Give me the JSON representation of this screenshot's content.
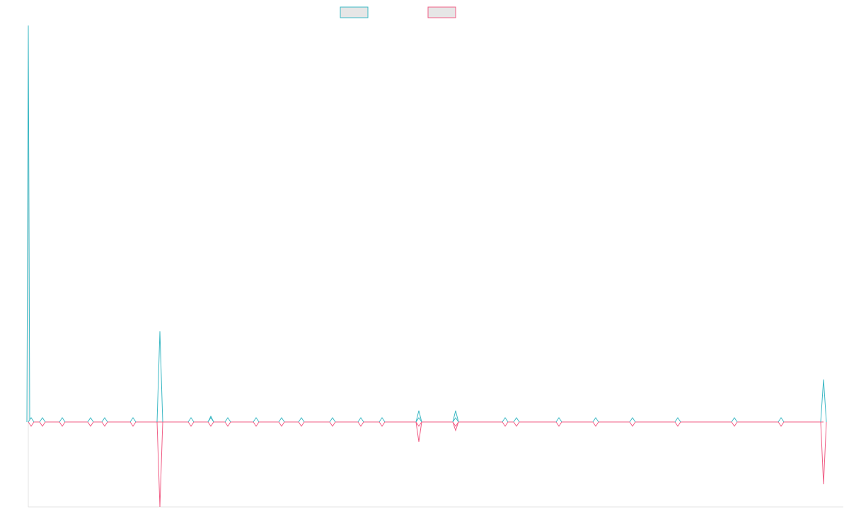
{
  "chart_data": {
    "type": "line",
    "title": "",
    "xlabel": "",
    "ylabel": "",
    "legend": {
      "position": "top-center",
      "entries": [
        "",
        ""
      ]
    },
    "grid": false,
    "xlim": [
      0,
      576
    ],
    "ylim": [
      -30,
      140
    ],
    "x": [
      0,
      2,
      10,
      24,
      44,
      54,
      74,
      93,
      115,
      129,
      141,
      161,
      179,
      193,
      215,
      235,
      250,
      276,
      302,
      337,
      345,
      375,
      401,
      427,
      459,
      499,
      532,
      562
    ],
    "series": [
      {
        "name": "",
        "color": "#3bb8c4",
        "values": [
          0,
          0,
          0,
          0,
          0,
          0,
          0,
          0,
          0,
          0,
          0,
          0,
          0,
          0,
          0,
          0,
          0,
          0,
          0,
          0,
          0,
          0,
          0,
          0,
          0,
          0,
          0,
          0
        ]
      },
      {
        "name": "",
        "color": "#f05d85",
        "values": [
          0,
          0,
          0,
          0,
          0,
          0,
          0,
          0,
          0,
          0,
          0,
          0,
          0,
          0,
          0,
          0,
          0,
          0,
          0,
          0,
          0,
          0,
          0,
          0,
          0,
          0,
          0,
          0
        ]
      }
    ],
    "spikes": [
      {
        "x": 0,
        "up": 140,
        "down": 0
      },
      {
        "x": 93,
        "up": 32,
        "down": -30
      },
      {
        "x": 129,
        "up": 2,
        "down": 0
      },
      {
        "x": 276,
        "up": 4,
        "down": -7
      },
      {
        "x": 302,
        "up": 4,
        "down": -3
      },
      {
        "x": 562,
        "up": 15,
        "down": -22
      }
    ]
  }
}
